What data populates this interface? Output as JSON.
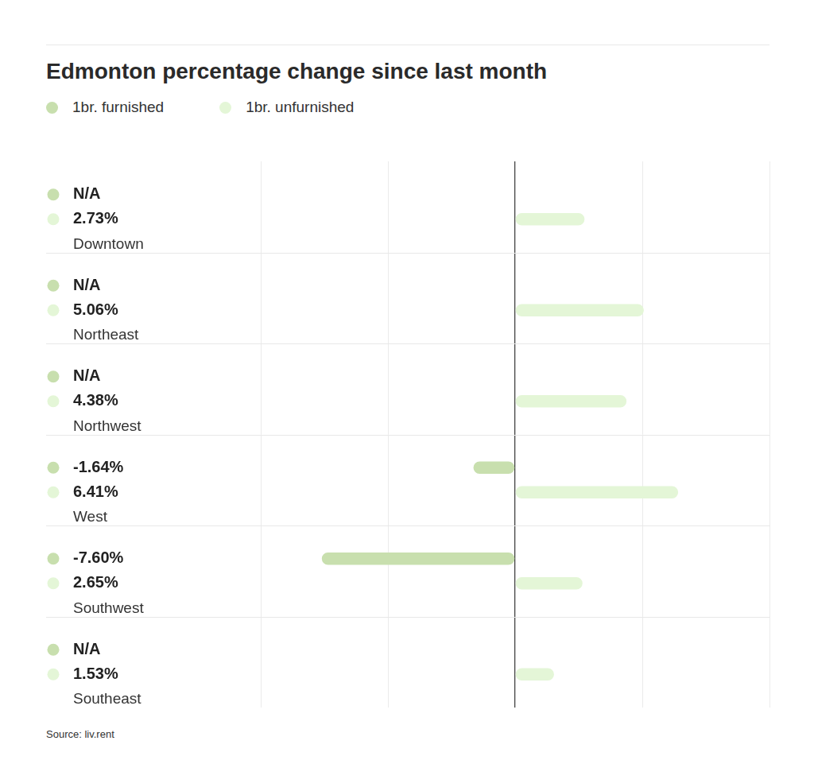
{
  "chart_data": {
    "type": "bar",
    "title": "Edmonton percentage change since last month",
    "source": "Source: liv.rent",
    "orientation": "horizontal",
    "categories": [
      "Downtown",
      "Northeast",
      "Northwest",
      "West",
      "Southwest",
      "Southeast"
    ],
    "series": [
      {
        "name": "1br. furnished",
        "color": "#c8dfae",
        "values": [
          null,
          null,
          null,
          -1.64,
          -7.6,
          null
        ],
        "value_labels": [
          "N/A",
          "N/A",
          "N/A",
          "-1.64%",
          "-7.60%",
          "N/A"
        ]
      },
      {
        "name": "1br. unfurnished",
        "color": "#e4f6d7",
        "values": [
          2.73,
          5.06,
          4.38,
          6.41,
          2.65,
          1.53
        ],
        "value_labels": [
          "2.73%",
          "5.06%",
          "4.38%",
          "6.41%",
          "2.65%",
          "1.53%"
        ]
      }
    ],
    "xlim": [
      -10,
      10
    ],
    "xticks": [
      -10,
      -5,
      0,
      5,
      10
    ],
    "grid": true,
    "legend": "top-left",
    "data_labels": true,
    "tick_labels": false
  }
}
